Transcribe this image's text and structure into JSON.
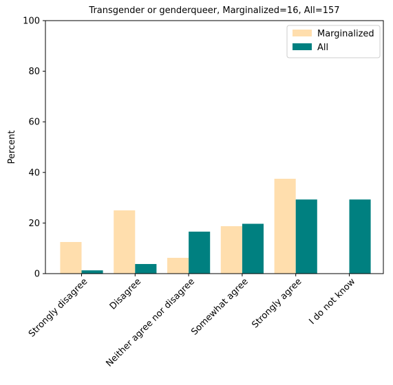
{
  "chart_data": {
    "type": "bar",
    "title": "Transgender or genderqueer, Marginalized=16, All=157",
    "xlabel": "",
    "ylabel": "Percent",
    "ylim": [
      0,
      100
    ],
    "yticks": [
      0,
      20,
      40,
      60,
      80,
      100
    ],
    "categories": [
      "Strongly disagree",
      "Disagree",
      "Neither agree nor disagree",
      "Somewhat agree",
      "Strongly agree",
      "I do not know"
    ],
    "series": [
      {
        "name": "Marginalized",
        "color": "#ffdead",
        "values": [
          12.5,
          25.0,
          6.25,
          18.75,
          37.5,
          0
        ]
      },
      {
        "name": "All",
        "color": "#008080",
        "values": [
          1.3,
          3.8,
          16.6,
          19.7,
          29.3,
          29.3
        ]
      }
    ],
    "grid": false,
    "legend": "top-right"
  }
}
